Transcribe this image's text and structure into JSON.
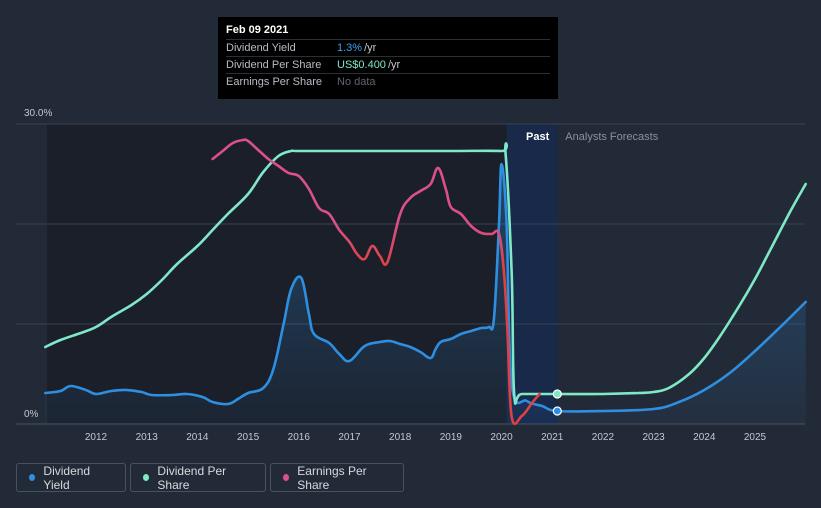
{
  "colors": {
    "background": "#232a37",
    "past_region": "#1b1f29",
    "highlight_band": "#18294a",
    "dividend_yield": "#2e8fe0",
    "dividend_per_share": "#7ee8c7",
    "eps_high": "#d9508a",
    "eps_low": "#e04040",
    "grid": "#3a4150",
    "axis_text": "#c4c8cf"
  },
  "tooltip": {
    "date": "Feb 09 2021",
    "rows": [
      {
        "label": "Dividend Yield",
        "value": "1.3%",
        "unit": " /yr"
      },
      {
        "label": "Dividend Per Share",
        "value": "US$0.400",
        "unit": " /yr"
      },
      {
        "label": "Earnings Per Share",
        "value": "No data"
      }
    ]
  },
  "labels": {
    "past": "Past",
    "forecast": "Analysts Forecasts"
  },
  "legend": [
    {
      "label": "Dividend Yield",
      "color": "#2e8fe0"
    },
    {
      "label": "Dividend Per Share",
      "color": "#7ee8c7"
    },
    {
      "label": "Earnings Per Share",
      "color": "#d9508a"
    }
  ],
  "chart_data": {
    "type": "line",
    "title": "",
    "xlabel": "",
    "ylabel": "",
    "xlim": [
      2011.0,
      2026.0
    ],
    "ylim": [
      0,
      30
    ],
    "y_ticks": [
      "0%",
      "30.0%"
    ],
    "x_ticks": [
      "2012",
      "2013",
      "2014",
      "2015",
      "2016",
      "2017",
      "2018",
      "2019",
      "2020",
      "2021",
      "2022",
      "2023",
      "2024",
      "2025"
    ],
    "past_region": [
      2011.0,
      2021.1
    ],
    "highlight_band": [
      2020.1,
      2021.1
    ],
    "marker_date": 2021.1,
    "series": [
      {
        "name": "Dividend Yield",
        "fill": true,
        "points": [
          [
            2011.0,
            3.1
          ],
          [
            2011.3,
            3.3
          ],
          [
            2011.5,
            3.8
          ],
          [
            2011.8,
            3.4
          ],
          [
            2012.0,
            3.0
          ],
          [
            2012.3,
            3.3
          ],
          [
            2012.6,
            3.4
          ],
          [
            2012.9,
            3.2
          ],
          [
            2013.1,
            2.9
          ],
          [
            2013.5,
            2.9
          ],
          [
            2013.8,
            3.0
          ],
          [
            2014.1,
            2.7
          ],
          [
            2014.3,
            2.2
          ],
          [
            2014.6,
            2.0
          ],
          [
            2014.8,
            2.5
          ],
          [
            2015.0,
            3.1
          ],
          [
            2015.3,
            3.6
          ],
          [
            2015.5,
            5.5
          ],
          [
            2015.7,
            10.0
          ],
          [
            2015.85,
            13.5
          ],
          [
            2016.05,
            14.6
          ],
          [
            2016.2,
            11.0
          ],
          [
            2016.3,
            9.0
          ],
          [
            2016.6,
            8.1
          ],
          [
            2016.8,
            7.0
          ],
          [
            2017.0,
            6.3
          ],
          [
            2017.3,
            7.8
          ],
          [
            2017.6,
            8.2
          ],
          [
            2017.8,
            8.3
          ],
          [
            2018.0,
            8.0
          ],
          [
            2018.2,
            7.7
          ],
          [
            2018.4,
            7.2
          ],
          [
            2018.6,
            6.6
          ],
          [
            2018.7,
            7.5
          ],
          [
            2018.8,
            8.2
          ],
          [
            2019.0,
            8.5
          ],
          [
            2019.2,
            9.0
          ],
          [
            2019.4,
            9.3
          ],
          [
            2019.6,
            9.6
          ],
          [
            2019.75,
            9.7
          ],
          [
            2019.85,
            10.5
          ],
          [
            2019.95,
            20.0
          ],
          [
            2020.0,
            26.0
          ],
          [
            2020.1,
            20.0
          ],
          [
            2020.2,
            4.0
          ],
          [
            2020.5,
            2.3
          ],
          [
            2020.8,
            1.8
          ],
          [
            2021.1,
            1.3
          ],
          [
            2022.0,
            1.3
          ],
          [
            2023.0,
            1.5
          ],
          [
            2023.5,
            2.2
          ],
          [
            2024.0,
            3.4
          ],
          [
            2024.5,
            5.1
          ],
          [
            2025.0,
            7.3
          ],
          [
            2025.5,
            9.7
          ],
          [
            2026.0,
            12.2
          ]
        ]
      },
      {
        "name": "Dividend Per Share",
        "fill": false,
        "points": [
          [
            2011.0,
            7.7
          ],
          [
            2011.3,
            8.4
          ],
          [
            2011.7,
            9.1
          ],
          [
            2012.0,
            9.7
          ],
          [
            2012.3,
            10.7
          ],
          [
            2012.7,
            11.9
          ],
          [
            2013.0,
            13.0
          ],
          [
            2013.3,
            14.4
          ],
          [
            2013.6,
            16.0
          ],
          [
            2014.0,
            17.8
          ],
          [
            2014.3,
            19.4
          ],
          [
            2014.6,
            21.0
          ],
          [
            2015.0,
            23.0
          ],
          [
            2015.3,
            25.2
          ],
          [
            2015.6,
            26.8
          ],
          [
            2015.85,
            27.3
          ],
          [
            2016.0,
            27.3
          ],
          [
            2017.0,
            27.3
          ],
          [
            2018.0,
            27.3
          ],
          [
            2019.0,
            27.3
          ],
          [
            2020.0,
            27.3
          ],
          [
            2020.08,
            27.0
          ],
          [
            2020.2,
            15.0
          ],
          [
            2020.25,
            3.0
          ],
          [
            2020.4,
            3.0
          ],
          [
            2021.1,
            3.0
          ],
          [
            2022.0,
            3.0
          ],
          [
            2022.7,
            3.1
          ],
          [
            2023.0,
            3.2
          ],
          [
            2023.3,
            3.6
          ],
          [
            2023.7,
            5.0
          ],
          [
            2024.0,
            6.6
          ],
          [
            2024.3,
            8.7
          ],
          [
            2024.7,
            11.9
          ],
          [
            2025.0,
            14.5
          ],
          [
            2025.3,
            17.4
          ],
          [
            2025.7,
            21.3
          ],
          [
            2026.0,
            24.0
          ]
        ]
      },
      {
        "name": "Earnings Per Share",
        "fill": false,
        "points": [
          [
            2014.3,
            26.5
          ],
          [
            2014.5,
            27.3
          ],
          [
            2014.7,
            28.1
          ],
          [
            2014.9,
            28.4
          ],
          [
            2015.0,
            28.3
          ],
          [
            2015.2,
            27.4
          ],
          [
            2015.4,
            26.5
          ],
          [
            2015.6,
            25.8
          ],
          [
            2015.8,
            25.1
          ],
          [
            2016.0,
            24.8
          ],
          [
            2016.2,
            23.5
          ],
          [
            2016.4,
            21.6
          ],
          [
            2016.6,
            21.0
          ],
          [
            2016.8,
            19.4
          ],
          [
            2017.0,
            18.2
          ],
          [
            2017.15,
            17.0
          ],
          [
            2017.3,
            16.5
          ],
          [
            2017.45,
            17.8
          ],
          [
            2017.6,
            16.8
          ],
          [
            2017.75,
            16.2
          ],
          [
            2018.0,
            21.0
          ],
          [
            2018.2,
            22.6
          ],
          [
            2018.4,
            23.3
          ],
          [
            2018.6,
            24.0
          ],
          [
            2018.75,
            25.6
          ],
          [
            2018.9,
            23.5
          ],
          [
            2019.0,
            21.7
          ],
          [
            2019.2,
            21.0
          ],
          [
            2019.4,
            19.8
          ],
          [
            2019.6,
            19.1
          ],
          [
            2019.8,
            19.0
          ],
          [
            2019.95,
            19.0
          ],
          [
            2020.05,
            15.0
          ],
          [
            2020.12,
            9.0
          ],
          [
            2020.2,
            0.7
          ],
          [
            2020.4,
            0.8
          ],
          [
            2020.6,
            2.1
          ],
          [
            2020.75,
            3.0
          ]
        ]
      }
    ],
    "markers": [
      {
        "series": "Dividend Per Share",
        "x": 2021.1,
        "y": 3.0
      },
      {
        "series": "Dividend Yield",
        "x": 2021.1,
        "y": 1.3
      }
    ]
  }
}
